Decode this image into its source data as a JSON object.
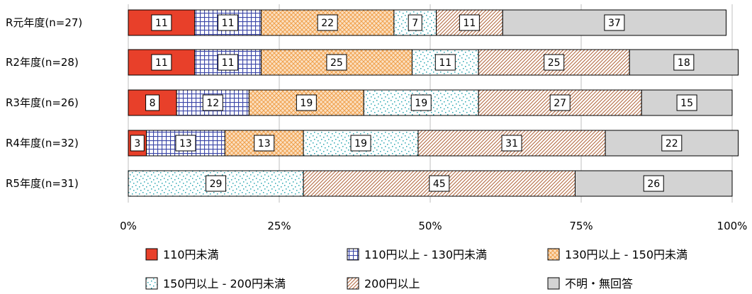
{
  "chart_data": {
    "type": "bar",
    "orientation": "horizontal",
    "stacked": true,
    "percent": true,
    "categories": [
      "R元年度(n=27)",
      "R2年度(n=28)",
      "R3年度(n=26)",
      "R4年度(n=32)",
      "R5年度(n=31)"
    ],
    "xticks": [
      "0%",
      "25%",
      "50%",
      "75%",
      "100%"
    ],
    "xlim": [
      0,
      100
    ],
    "grid": true,
    "legend_position": "bottom",
    "series": [
      {
        "name": "110円未満",
        "values": [
          11,
          11,
          8,
          3,
          0
        ],
        "color": "#e8402a",
        "pattern": "solid"
      },
      {
        "name": "110円以上 - 130円未満",
        "values": [
          11,
          11,
          12,
          13,
          0
        ],
        "color": "#3b46a8",
        "pattern": "grid"
      },
      {
        "name": "130円以上 - 150円未満",
        "values": [
          22,
          25,
          19,
          13,
          0
        ],
        "color": "#f0a04b",
        "pattern": "crosshatch"
      },
      {
        "name": "150円以上 - 200円未満",
        "values": [
          7,
          11,
          19,
          19,
          29
        ],
        "color": "#2aa6b0",
        "pattern": "dots"
      },
      {
        "name": "200円以上",
        "values": [
          11,
          25,
          27,
          31,
          45
        ],
        "color": "#b0643a",
        "pattern": "diagonal"
      },
      {
        "name": "不明・無回答",
        "values": [
          37,
          18,
          15,
          22,
          26
        ],
        "color": "#d3d3d3",
        "pattern": "solid"
      }
    ]
  }
}
